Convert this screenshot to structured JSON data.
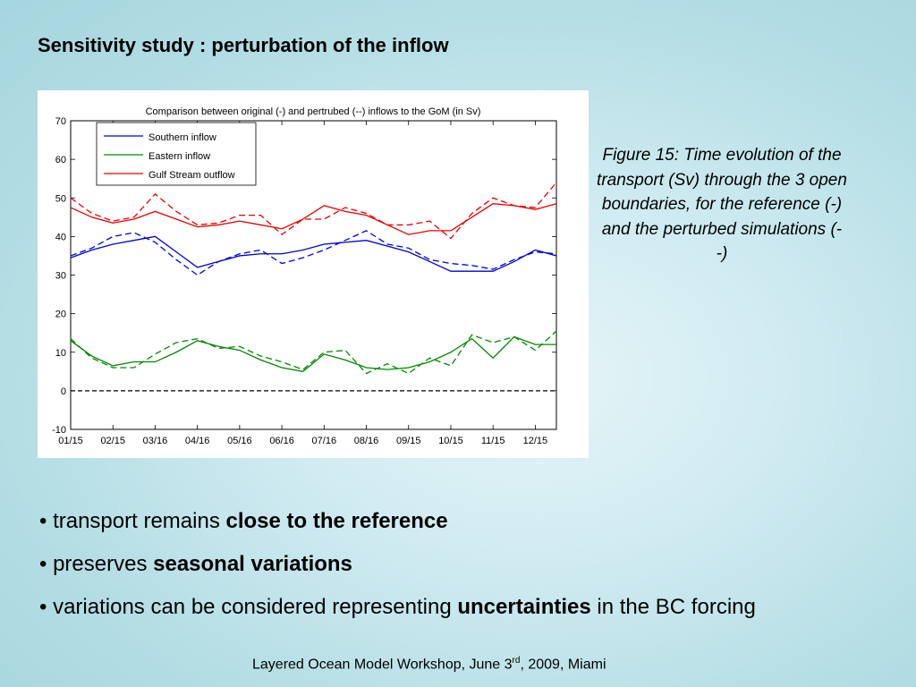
{
  "slide": {
    "title": "Sensitivity study : perturbation of the inflow",
    "caption": "Figure 15: Time evolution of the transport (Sv) through the 3 open boundaries, for the reference (-) and the perturbed simulations (- -)",
    "bullets": [
      {
        "text_before": "transport remains ",
        "bold": "close to the reference",
        "text_after": ""
      },
      {
        "text_before": "preserves ",
        "bold": "seasonal variations",
        "text_after": ""
      },
      {
        "text_before": "variations can be considered representing ",
        "bold": "uncertainties",
        "text_after": " in the BC forcing"
      }
    ],
    "bullet_char": "•",
    "footer": {
      "before": "Layered Ocean Model Workshop, June 3",
      "sup": "rd",
      "after": ", 2009, Miami"
    }
  },
  "chart_data": {
    "type": "line",
    "title": "Comparison between original (-) and pertrubed (--) inflows to the GoM (in Sv)",
    "xlabel": "",
    "ylabel": "",
    "x": [
      0,
      0.5,
      1,
      1.5,
      2,
      2.5,
      3,
      3.5,
      4,
      4.5,
      5,
      5.5,
      6,
      6.5,
      7,
      7.5,
      8,
      8.5,
      9,
      9.5,
      10,
      10.5,
      11,
      11.5
    ],
    "xtick_labels": [
      "01/15",
      "02/15",
      "03/16",
      "04/16",
      "05/16",
      "06/16",
      "07/16",
      "08/16",
      "09/15",
      "10/15",
      "11/15",
      "12/15"
    ],
    "xlim": [
      0,
      11.5
    ],
    "ylim": [
      -10,
      70
    ],
    "yticks": [
      -10,
      0,
      10,
      20,
      30,
      40,
      50,
      60,
      70
    ],
    "grid": false,
    "legend_position": "top-left",
    "series": [
      {
        "name": "Southern inflow",
        "color": "#0000dd",
        "style": "solid",
        "values": [
          34.5,
          36.5,
          38,
          39,
          40,
          36,
          32,
          33.5,
          35,
          35.5,
          35.5,
          36.5,
          38,
          38.5,
          39,
          37.5,
          36,
          33.5,
          31,
          31,
          31,
          33.5,
          36.5,
          35
        ]
      },
      {
        "name": "",
        "color": "#0000dd",
        "style": "dashed",
        "values": [
          35,
          37,
          40,
          41,
          38.5,
          34,
          30,
          33.5,
          35.5,
          36.5,
          33,
          34.5,
          36.5,
          39,
          41.5,
          38,
          37,
          34,
          33,
          32.5,
          31.5,
          34,
          36,
          35.5
        ]
      },
      {
        "name": "Eastern inflow",
        "color": "#008800",
        "style": "solid",
        "values": [
          13,
          9,
          6.5,
          7.5,
          7.5,
          10,
          13,
          11.5,
          10.5,
          8,
          6,
          5,
          9.5,
          8,
          6,
          5.5,
          6,
          7.5,
          10,
          13.5,
          8.5,
          14,
          12,
          12
        ]
      },
      {
        "name": "",
        "color": "#008800",
        "style": "dashed",
        "values": [
          13.5,
          8.5,
          6,
          6,
          9.5,
          12.5,
          13.5,
          11,
          11.5,
          9,
          7.5,
          5.5,
          10,
          10.5,
          4.5,
          7,
          4.5,
          8.5,
          6.5,
          14.5,
          12.5,
          14,
          10.5,
          15.5
        ]
      },
      {
        "name": "Gulf Stream outflow",
        "color": "#ee0000",
        "style": "solid",
        "values": [
          47.5,
          45,
          43.5,
          44.5,
          46.5,
          44.5,
          42.5,
          43,
          44,
          43,
          42,
          44.5,
          48,
          46.5,
          45.5,
          43,
          40.5,
          41.5,
          41.5,
          45,
          48.5,
          48,
          47,
          48.5
        ]
      },
      {
        "name": "",
        "color": "#ee0000",
        "style": "dashed",
        "values": [
          50,
          46,
          44,
          45,
          51,
          46.5,
          43,
          43.5,
          45.5,
          45.5,
          40.5,
          44.5,
          44.5,
          47.5,
          46,
          43,
          43,
          44,
          39.5,
          46,
          50,
          48,
          47.5,
          54
        ]
      },
      {
        "name": "",
        "color": "#000000",
        "style": "dashed",
        "values": [
          0,
          0,
          0,
          0,
          0,
          0,
          0,
          0,
          0,
          0,
          0,
          0,
          0,
          0,
          0,
          0,
          0,
          0,
          0,
          0,
          0,
          0,
          0,
          0
        ]
      }
    ]
  }
}
